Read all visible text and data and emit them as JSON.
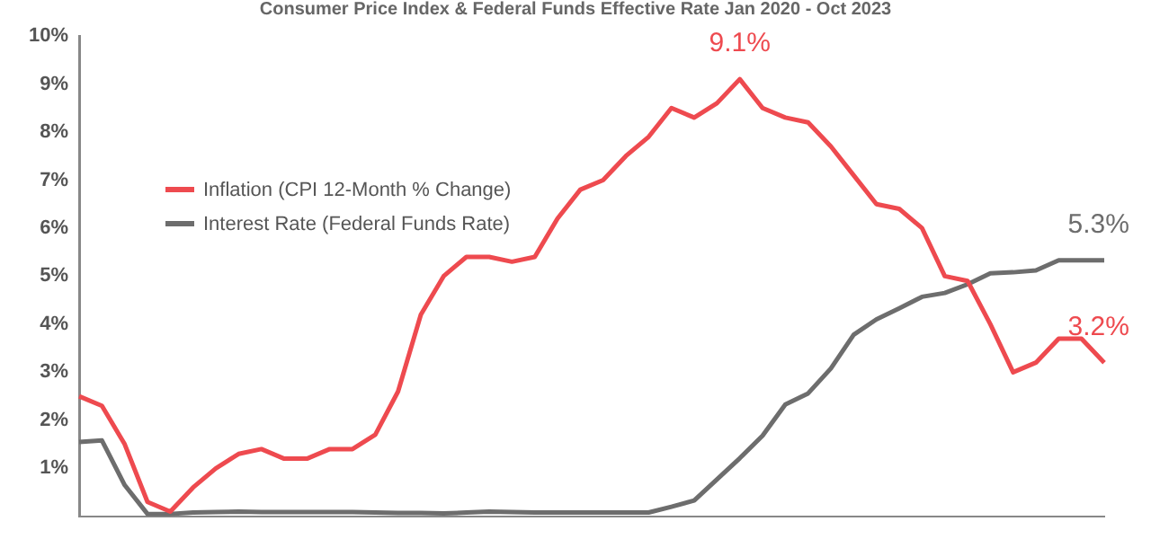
{
  "chart_data": {
    "type": "line",
    "title": "Consumer Price Index & Federal Funds Effective Rate Jan 2020 - Oct 2023",
    "categories": [
      null,
      null,
      null,
      null,
      null,
      null,
      null,
      null,
      null,
      null,
      null,
      null,
      null,
      null,
      null,
      null,
      null,
      null,
      null,
      null,
      null,
      null,
      null,
      null,
      null,
      null,
      null,
      null,
      null,
      null,
      null,
      null,
      null,
      null,
      null,
      null,
      null,
      null,
      null,
      null,
      null,
      null,
      null,
      null,
      null,
      null
    ],
    "series": [
      {
        "name": "Inflation (CPI 12-Month % Change)",
        "color": "#ee4a4f",
        "values": [
          2.5,
          2.3,
          1.5,
          0.3,
          0.1,
          0.6,
          1.0,
          1.3,
          1.4,
          1.2,
          1.2,
          1.4,
          1.4,
          1.7,
          2.6,
          4.2,
          5.0,
          5.4,
          5.4,
          5.3,
          5.4,
          6.2,
          6.8,
          7.0,
          7.5,
          7.9,
          8.5,
          8.3,
          8.6,
          9.1,
          8.5,
          8.3,
          8.2,
          7.7,
          7.1,
          6.5,
          6.4,
          6.0,
          5.0,
          4.9,
          4.0,
          3.0,
          3.2,
          3.7,
          3.7,
          3.2
        ],
        "value_labels": [
          null,
          null,
          null,
          null,
          null,
          null,
          null,
          null,
          null,
          null,
          null,
          null,
          null,
          null,
          null,
          null,
          null,
          null,
          null,
          null,
          null,
          null,
          null,
          null,
          null,
          null,
          null,
          null,
          null,
          "9.1%",
          null,
          null,
          null,
          null,
          null,
          null,
          null,
          null,
          null,
          null,
          null,
          null,
          null,
          null,
          null,
          "3.2%"
        ]
      },
      {
        "name": "Interest Rate (Federal Funds Rate)",
        "color": "#6d6d6d",
        "values": [
          1.55,
          1.58,
          0.65,
          0.05,
          0.05,
          0.08,
          0.09,
          0.1,
          0.09,
          0.09,
          0.09,
          0.09,
          0.09,
          0.08,
          0.07,
          0.07,
          0.06,
          0.08,
          0.1,
          0.09,
          0.08,
          0.08,
          0.08,
          0.08,
          0.08,
          0.08,
          0.2,
          0.33,
          0.77,
          1.21,
          1.68,
          2.33,
          2.56,
          3.08,
          3.78,
          4.1,
          4.33,
          4.57,
          4.65,
          4.83,
          5.06,
          5.08,
          5.12,
          5.33,
          5.33,
          5.33
        ],
        "value_labels": [
          null,
          null,
          null,
          null,
          null,
          null,
          null,
          null,
          null,
          null,
          null,
          null,
          null,
          null,
          null,
          null,
          null,
          null,
          null,
          null,
          null,
          null,
          null,
          null,
          null,
          null,
          null,
          null,
          null,
          null,
          null,
          null,
          null,
          null,
          null,
          null,
          null,
          null,
          null,
          null,
          null,
          null,
          null,
          null,
          null,
          "5.3%"
        ]
      }
    ],
    "ylim": [
      0,
      10
    ],
    "yticks": [
      {
        "value": 1,
        "label": "1%"
      },
      {
        "value": 2,
        "label": "2%"
      },
      {
        "value": 3,
        "label": "3%"
      },
      {
        "value": 4,
        "label": "4%"
      },
      {
        "value": 5,
        "label": "5%"
      },
      {
        "value": 6,
        "label": "6%"
      },
      {
        "value": 7,
        "label": "7%"
      },
      {
        "value": 8,
        "label": "8%"
      },
      {
        "value": 9,
        "label": "9%"
      },
      {
        "value": 10,
        "label": "10%"
      }
    ],
    "tick_labels": "y",
    "grid": false,
    "legend": "top left",
    "marker": "none",
    "line_style": "solid"
  }
}
